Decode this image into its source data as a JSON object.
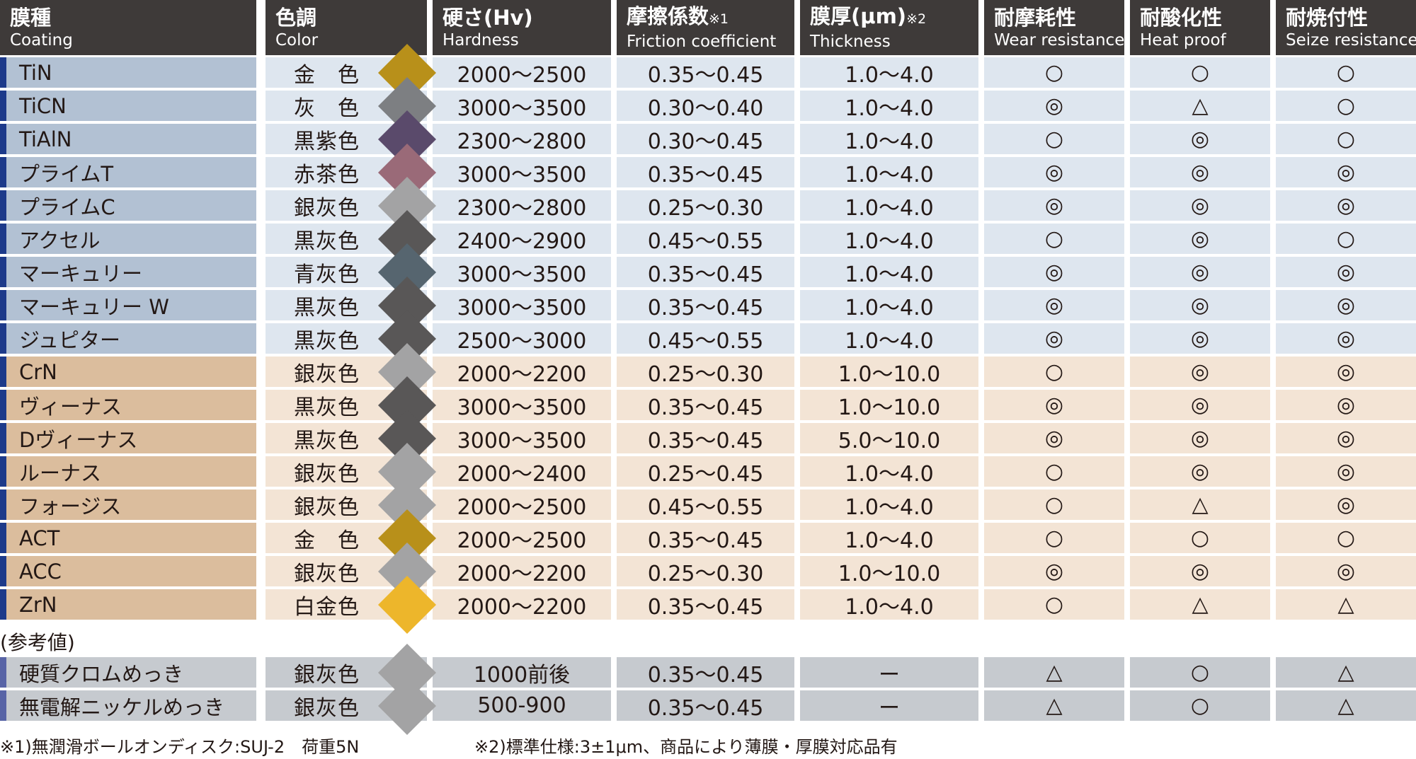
{
  "headers": [
    {
      "jp": "膜種",
      "en": "Coating",
      "note": ""
    },
    {
      "jp": "色調",
      "en": "Color",
      "note": ""
    },
    {
      "jp": "硬さ(Hv)",
      "en": "Hardness",
      "note": ""
    },
    {
      "jp": "摩擦係数",
      "en": "Friction coefficient",
      "note": "※1"
    },
    {
      "jp": "膜厚(μm)",
      "en": "Thickness",
      "note": "※2"
    },
    {
      "jp": "耐摩耗性",
      "en": "Wear resistance",
      "note": ""
    },
    {
      "jp": "耐酸化性",
      "en": "Heat proof",
      "note": ""
    },
    {
      "jp": "耐焼付性",
      "en": "Seize resistance",
      "note": ""
    }
  ],
  "rows": [
    {
      "group": "blue",
      "name": "TiN",
      "color": "金　色",
      "swatch": "#b8901a",
      "hardness": "2000～2500",
      "friction": "0.35～0.45",
      "thickness": "1.0～4.0",
      "wear": "○",
      "heat": "○",
      "seize": "○"
    },
    {
      "group": "blue",
      "name": "TiCN",
      "color": "灰　色",
      "swatch": "#7d7f82",
      "hardness": "3000～3500",
      "friction": "0.30～0.40",
      "thickness": "1.0～4.0",
      "wear": "◎",
      "heat": "△",
      "seize": "○"
    },
    {
      "group": "blue",
      "name": "TiAlN",
      "color": "黒紫色",
      "swatch": "#5a4a6b",
      "hardness": "2300～2800",
      "friction": "0.30～0.45",
      "thickness": "1.0～4.0",
      "wear": "○",
      "heat": "◎",
      "seize": "○"
    },
    {
      "group": "blue",
      "name": "プライムT",
      "color": "赤茶色",
      "swatch": "#9a6a78",
      "hardness": "3000～3500",
      "friction": "0.35～0.45",
      "thickness": "1.0～4.0",
      "wear": "◎",
      "heat": "◎",
      "seize": "◎"
    },
    {
      "group": "blue",
      "name": "プライムC",
      "color": "銀灰色",
      "swatch": "#a3a3a4",
      "hardness": "2300～2800",
      "friction": "0.25～0.30",
      "thickness": "1.0～4.0",
      "wear": "◎",
      "heat": "◎",
      "seize": "◎"
    },
    {
      "group": "blue",
      "name": "アクセル",
      "color": "黒灰色",
      "swatch": "#595757",
      "hardness": "2400～2900",
      "friction": "0.45～0.55",
      "thickness": "1.0～4.0",
      "wear": "○",
      "heat": "◎",
      "seize": "○"
    },
    {
      "group": "blue",
      "name": "マーキュリー",
      "color": "青灰色",
      "swatch": "#56656f",
      "hardness": "3000～3500",
      "friction": "0.35～0.45",
      "thickness": "1.0～4.0",
      "wear": "◎",
      "heat": "◎",
      "seize": "◎"
    },
    {
      "group": "blue",
      "name": "マーキュリー W",
      "color": "黒灰色",
      "swatch": "#595757",
      "hardness": "3000～3500",
      "friction": "0.35～0.45",
      "thickness": "1.0～4.0",
      "wear": "◎",
      "heat": "◎",
      "seize": "◎"
    },
    {
      "group": "blue",
      "name": "ジュピター",
      "color": "黒灰色",
      "swatch": "#595757",
      "hardness": "2500～3000",
      "friction": "0.45～0.55",
      "thickness": "1.0～4.0",
      "wear": "◎",
      "heat": "◎",
      "seize": "◎"
    },
    {
      "group": "tan",
      "name": "CrN",
      "color": "銀灰色",
      "swatch": "#a3a3a4",
      "hardness": "2000～2200",
      "friction": "0.25～0.30",
      "thickness": "1.0～10.0",
      "wear": "○",
      "heat": "◎",
      "seize": "◎"
    },
    {
      "group": "tan",
      "name": "ヴィーナス",
      "color": "黒灰色",
      "swatch": "#595757",
      "hardness": "3000～3500",
      "friction": "0.35～0.45",
      "thickness": "1.0～10.0",
      "wear": "◎",
      "heat": "◎",
      "seize": "◎"
    },
    {
      "group": "tan",
      "name": "Dヴィーナス",
      "color": "黒灰色",
      "swatch": "#595757",
      "hardness": "3000～3500",
      "friction": "0.35～0.45",
      "thickness": "5.0～10.0",
      "wear": "◎",
      "heat": "◎",
      "seize": "◎"
    },
    {
      "group": "tan",
      "name": "ルーナス",
      "color": "銀灰色",
      "swatch": "#a3a3a4",
      "hardness": "2000～2400",
      "friction": "0.25～0.45",
      "thickness": "1.0～4.0",
      "wear": "○",
      "heat": "◎",
      "seize": "◎"
    },
    {
      "group": "tan",
      "name": "フォージス",
      "color": "銀灰色",
      "swatch": "#a3a3a4",
      "hardness": "2000～2500",
      "friction": "0.45～0.55",
      "thickness": "1.0～4.0",
      "wear": "○",
      "heat": "△",
      "seize": "◎"
    },
    {
      "group": "tan",
      "name": "ACT",
      "color": "金　色",
      "swatch": "#b8901a",
      "hardness": "2000～2500",
      "friction": "0.35～0.45",
      "thickness": "1.0～4.0",
      "wear": "○",
      "heat": "○",
      "seize": "○"
    },
    {
      "group": "tan",
      "name": "ACC",
      "color": "銀灰色",
      "swatch": "#a3a3a4",
      "hardness": "2000～2200",
      "friction": "0.25～0.30",
      "thickness": "1.0～10.0",
      "wear": "◎",
      "heat": "◎",
      "seize": "◎"
    },
    {
      "group": "tan",
      "name": "ZrN",
      "color": "白金色",
      "swatch": "#edb62b",
      "hardness": "2000～2200",
      "friction": "0.35～0.45",
      "thickness": "1.0～4.0",
      "wear": "○",
      "heat": "△",
      "seize": "△"
    }
  ],
  "reference_label": "(参考値)",
  "reference_rows": [
    {
      "group": "gray",
      "name": "硬質クロムめっき",
      "color": "銀灰色",
      "swatch": "#a3a3a4",
      "hardness": "1000前後",
      "friction": "0.35～0.45",
      "thickness": "ー",
      "wear": "△",
      "heat": "○",
      "seize": "△"
    },
    {
      "group": "gray",
      "name": "無電解ニッケルめっき",
      "color": "銀灰色",
      "swatch": "#a3a3a4",
      "hardness": "500-900",
      "friction": "0.35～0.45",
      "thickness": "ー",
      "wear": "△",
      "heat": "○",
      "seize": "△"
    }
  ],
  "footnotes": [
    "※1)無潤滑ボールオンディスク:SUJ-2　荷重5N",
    "※2)標準仕様:3±1μm、商品により薄膜・厚膜対応品有"
  ]
}
